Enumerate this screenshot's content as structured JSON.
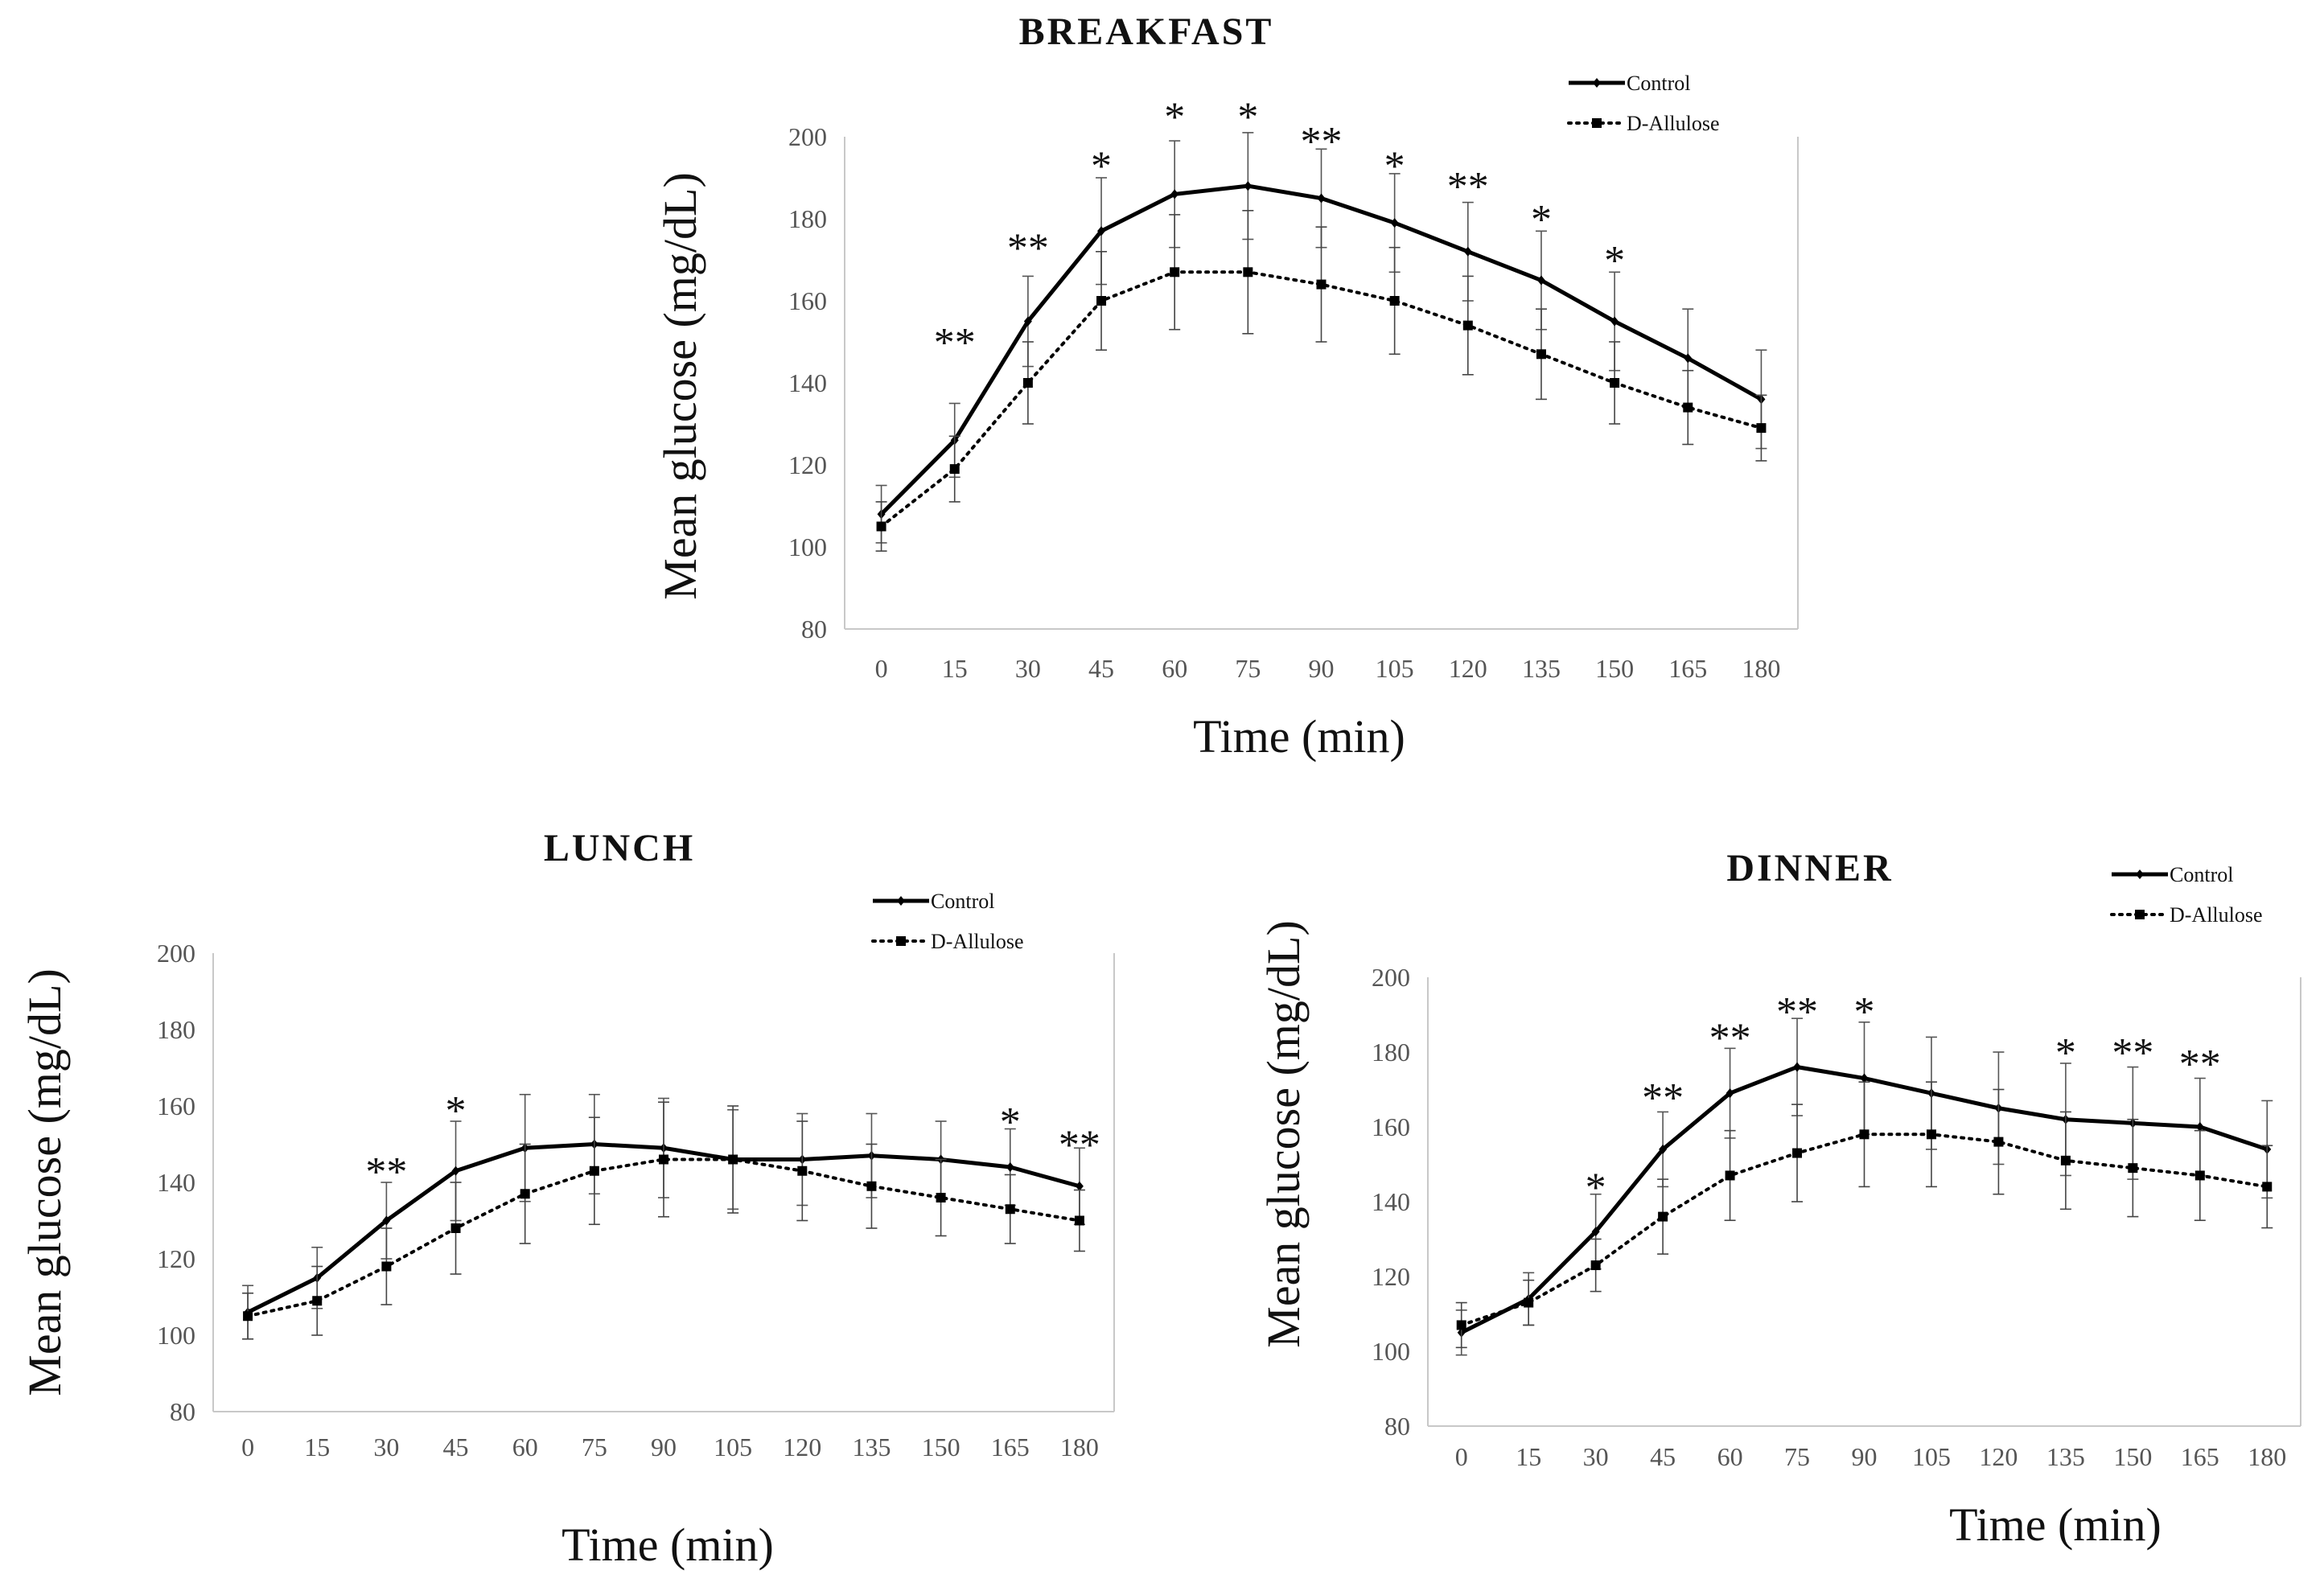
{
  "chart_data": [
    {
      "id": "breakfast",
      "type": "line",
      "title": "BREAKFAST",
      "xlabel": "Time (min)",
      "ylabel": "Mean glucose (mg/dL)",
      "ylim": [
        80,
        200
      ],
      "yticks": [
        80,
        100,
        120,
        140,
        160,
        180,
        200
      ],
      "x": [
        0,
        15,
        30,
        45,
        60,
        75,
        90,
        105,
        120,
        135,
        150,
        165,
        180
      ],
      "legend_position": "top-right",
      "series": [
        {
          "name": "Control",
          "style": "solid",
          "marker": "diamond",
          "values": [
            108,
            126,
            155,
            177,
            186,
            188,
            185,
            179,
            172,
            165,
            155,
            146,
            136
          ],
          "errors": [
            7,
            9,
            11,
            13,
            13,
            13,
            12,
            12,
            12,
            12,
            12,
            12,
            12
          ]
        },
        {
          "name": "D-Allulose",
          "style": "dotted",
          "marker": "square",
          "values": [
            105,
            119,
            140,
            160,
            167,
            167,
            164,
            160,
            154,
            147,
            140,
            134,
            129
          ],
          "errors": [
            6,
            8,
            10,
            12,
            14,
            15,
            14,
            13,
            12,
            11,
            10,
            9,
            8
          ]
        }
      ],
      "annotations": [
        {
          "x": 15,
          "text": "**",
          "y": 150
        },
        {
          "x": 30,
          "text": "**",
          "y": 173
        },
        {
          "x": 45,
          "text": "*",
          "y": 193
        },
        {
          "x": 60,
          "text": "*",
          "y": 205
        },
        {
          "x": 75,
          "text": "*",
          "y": 205
        },
        {
          "x": 90,
          "text": "**",
          "y": 199
        },
        {
          "x": 105,
          "text": "*",
          "y": 193
        },
        {
          "x": 120,
          "text": "**",
          "y": 188
        },
        {
          "x": 135,
          "text": "*",
          "y": 180
        },
        {
          "x": 150,
          "text": "*",
          "y": 170
        }
      ]
    },
    {
      "id": "lunch",
      "type": "line",
      "title": "LUNCH",
      "xlabel": "Time (min)",
      "ylabel": "Mean glucose (mg/dL)",
      "ylim": [
        80,
        200
      ],
      "yticks": [
        80,
        100,
        120,
        140,
        160,
        180,
        200
      ],
      "x": [
        0,
        15,
        30,
        45,
        60,
        75,
        90,
        105,
        120,
        135,
        150,
        165,
        180
      ],
      "legend_position": "top-right",
      "series": [
        {
          "name": "Control",
          "style": "solid",
          "marker": "diamond",
          "values": [
            106,
            115,
            130,
            143,
            149,
            150,
            149,
            146,
            146,
            147,
            146,
            144,
            139
          ],
          "errors": [
            7,
            8,
            10,
            13,
            14,
            13,
            13,
            13,
            12,
            11,
            10,
            10,
            10
          ]
        },
        {
          "name": "D-Allulose",
          "style": "dotted",
          "marker": "square",
          "values": [
            105,
            109,
            118,
            128,
            137,
            143,
            146,
            146,
            143,
            139,
            136,
            133,
            130
          ],
          "errors": [
            6,
            9,
            10,
            12,
            13,
            14,
            15,
            14,
            13,
            11,
            10,
            9,
            8
          ]
        }
      ],
      "annotations": [
        {
          "x": 30,
          "text": "**",
          "y": 143
        },
        {
          "x": 45,
          "text": "*",
          "y": 159
        },
        {
          "x": 165,
          "text": "*",
          "y": 156
        },
        {
          "x": 180,
          "text": "**",
          "y": 150
        }
      ]
    },
    {
      "id": "dinner",
      "type": "line",
      "title": "DINNER",
      "xlabel": "Time (min)",
      "ylabel": "Mean glucose (mg/dL)",
      "ylim": [
        80,
        200
      ],
      "yticks": [
        80,
        100,
        120,
        140,
        160,
        180,
        200
      ],
      "x": [
        0,
        15,
        30,
        45,
        60,
        75,
        90,
        105,
        120,
        135,
        150,
        165,
        180
      ],
      "legend_position": "top-right",
      "series": [
        {
          "name": "Control",
          "style": "solid",
          "marker": "diamond",
          "values": [
            105,
            114,
            132,
            154,
            169,
            176,
            173,
            169,
            165,
            162,
            161,
            160,
            154
          ],
          "errors": [
            6,
            7,
            10,
            10,
            12,
            13,
            15,
            15,
            15,
            15,
            15,
            13,
            13
          ]
        },
        {
          "name": "D-Allulose",
          "style": "dotted",
          "marker": "square",
          "values": [
            107,
            113,
            123,
            136,
            147,
            153,
            158,
            158,
            156,
            151,
            149,
            147,
            144
          ],
          "errors": [
            6,
            6,
            7,
            10,
            12,
            13,
            14,
            14,
            14,
            13,
            13,
            12,
            11
          ]
        }
      ],
      "annotations": [
        {
          "x": 30,
          "text": "*",
          "y": 144
        },
        {
          "x": 45,
          "text": "**",
          "y": 168
        },
        {
          "x": 60,
          "text": "**",
          "y": 184
        },
        {
          "x": 75,
          "text": "**",
          "y": 191
        },
        {
          "x": 90,
          "text": "*",
          "y": 191
        },
        {
          "x": 135,
          "text": "*",
          "y": 180
        },
        {
          "x": 150,
          "text": "**",
          "y": 180
        },
        {
          "x": 165,
          "text": "**",
          "y": 177
        }
      ]
    }
  ]
}
